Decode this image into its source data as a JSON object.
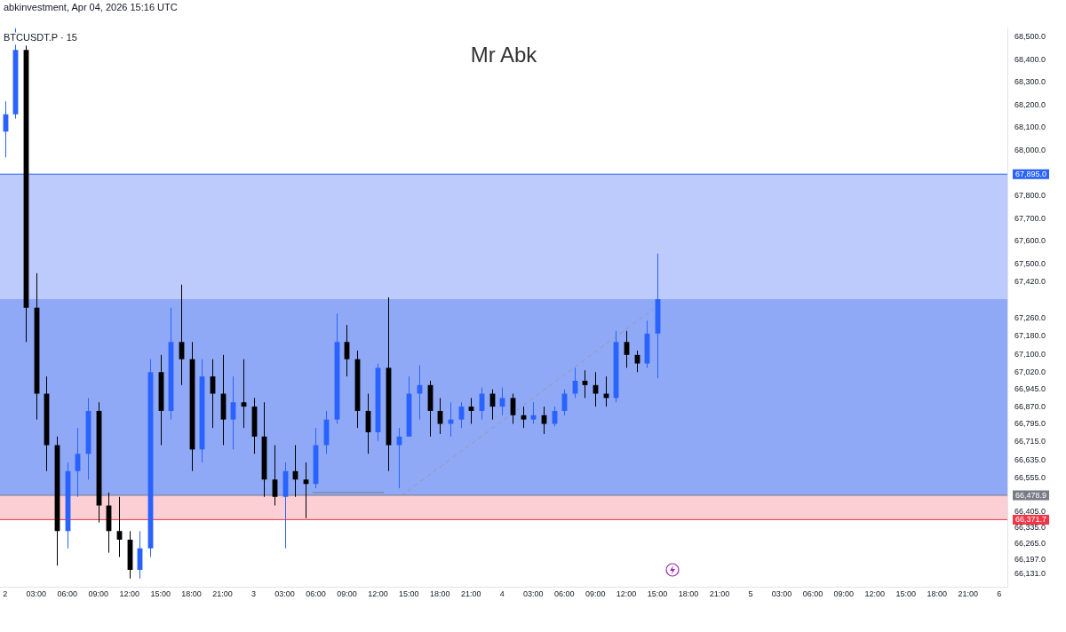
{
  "chart_data": {
    "type": "candlestick",
    "title": "Mr Abk",
    "subtitle": "BTCUSDT.P · 15",
    "annotations": [
      "abkinvestment, Apr 04, 2026 15:16 UTC"
    ],
    "x": [
      "2026-04-02T00:00",
      "2026-04-02T01:00",
      "2026-04-02T02:00",
      "2026-04-02T03:00",
      "2026-04-02T04:00",
      "2026-04-02T05:00",
      "2026-04-02T06:00",
      "2026-04-02T07:00",
      "2026-04-02T08:00",
      "2026-04-02T09:00",
      "2026-04-02T10:00",
      "2026-04-02T11:00",
      "2026-04-02T12:00",
      "2026-04-02T13:00",
      "2026-04-02T14:00",
      "2026-04-02T15:00",
      "2026-04-02T16:00",
      "2026-04-02T17:00",
      "2026-04-02T18:00",
      "2026-04-02T19:00",
      "2026-04-02T20:00",
      "2026-04-02T21:00",
      "2026-04-02T22:00",
      "2026-04-02T23:00",
      "2026-04-03T00:00",
      "2026-04-03T01:00",
      "2026-04-03T02:00",
      "2026-04-03T03:00",
      "2026-04-03T04:00",
      "2026-04-03T05:00",
      "2026-04-03T06:00",
      "2026-04-03T07:00",
      "2026-04-03T08:00",
      "2026-04-03T09:00",
      "2026-04-03T10:00",
      "2026-04-03T11:00",
      "2026-04-03T12:00",
      "2026-04-03T13:00",
      "2026-04-03T14:00",
      "2026-04-03T15:00",
      "2026-04-03T16:00",
      "2026-04-03T17:00",
      "2026-04-03T18:00",
      "2026-04-03T19:00",
      "2026-04-03T20:00",
      "2026-04-03T21:00",
      "2026-04-03T22:00",
      "2026-04-03T23:00",
      "2026-04-04T00:00",
      "2026-04-04T01:00",
      "2026-04-04T02:00",
      "2026-04-04T03:00",
      "2026-04-04T04:00",
      "2026-04-04T05:00",
      "2026-04-04T06:00",
      "2026-04-04T07:00",
      "2026-04-04T08:00",
      "2026-04-04T09:00",
      "2026-04-04T10:00",
      "2026-04-04T11:00",
      "2026-04-04T12:00",
      "2026-04-04T13:00",
      "2026-04-04T14:00",
      "2026-04-04T15:00"
    ],
    "ohlc": [
      [
        68083,
        68216,
        67969,
        68159
      ],
      [
        68159,
        68538,
        68140,
        68443
      ],
      [
        68443,
        68462,
        67155,
        67306
      ],
      [
        67306,
        67458,
        66813,
        66927
      ],
      [
        66927,
        67003,
        66586,
        66700
      ],
      [
        66700,
        66738,
        66169,
        66321
      ],
      [
        66321,
        66624,
        66245,
        66586
      ],
      [
        66586,
        66776,
        66472,
        66662
      ],
      [
        66662,
        66908,
        66548,
        66851
      ],
      [
        66851,
        66889,
        66359,
        66434
      ],
      [
        66434,
        66491,
        66226,
        66321
      ],
      [
        66321,
        66472,
        66207,
        66283
      ],
      [
        66283,
        66321,
        66112,
        66150
      ],
      [
        66150,
        66321,
        66112,
        66245
      ],
      [
        66245,
        67079,
        66207,
        67022
      ],
      [
        67022,
        67098,
        66700,
        66851
      ],
      [
        66851,
        67306,
        66813,
        67155
      ],
      [
        67155,
        67408,
        66965,
        67079
      ],
      [
        67079,
        67155,
        66586,
        66681
      ],
      [
        66681,
        67079,
        66624,
        67003
      ],
      [
        67003,
        67079,
        66776,
        66927
      ],
      [
        66927,
        67098,
        66700,
        66813
      ],
      [
        66813,
        67003,
        66681,
        66889
      ],
      [
        66889,
        67079,
        66776,
        66870
      ],
      [
        66870,
        66908,
        66662,
        66738
      ],
      [
        66738,
        66889,
        66472,
        66548
      ],
      [
        66548,
        66700,
        66434,
        66472
      ],
      [
        66472,
        66624,
        66245,
        66586
      ],
      [
        66586,
        66700,
        66472,
        66548
      ],
      [
        66548,
        66624,
        66378,
        66529
      ],
      [
        66529,
        66776,
        66510,
        66700
      ],
      [
        66700,
        66851,
        66662,
        66813
      ],
      [
        66813,
        67280,
        66794,
        67155
      ],
      [
        67155,
        67230,
        67003,
        67079
      ],
      [
        67079,
        67117,
        66776,
        66851
      ],
      [
        66851,
        66927,
        66662,
        66757
      ],
      [
        66757,
        67060,
        66719,
        67041
      ],
      [
        67041,
        67352,
        66586,
        66700
      ],
      [
        66700,
        66776,
        66510,
        66738
      ],
      [
        66738,
        67003,
        66738,
        66927
      ],
      [
        66927,
        67052,
        66813,
        66965
      ],
      [
        66965,
        66984,
        66738,
        66851
      ],
      [
        66851,
        66908,
        66749,
        66794
      ],
      [
        66794,
        66889,
        66738,
        66813
      ],
      [
        66813,
        66889,
        66776,
        66870
      ],
      [
        66870,
        66908,
        66794,
        66851
      ],
      [
        66851,
        66954,
        66813,
        66927
      ],
      [
        66927,
        66946,
        66813,
        66870
      ],
      [
        66870,
        66954,
        66832,
        66908
      ],
      [
        66908,
        66927,
        66794,
        66832
      ],
      [
        66832,
        66870,
        66776,
        66813
      ],
      [
        66813,
        66889,
        66794,
        66832
      ],
      [
        66832,
        66870,
        66749,
        66794
      ],
      [
        66794,
        66870,
        66783,
        66851
      ],
      [
        66851,
        66946,
        66832,
        66927
      ],
      [
        66927,
        67041,
        66908,
        66984
      ],
      [
        66984,
        67030,
        66908,
        66965
      ],
      [
        66965,
        67022,
        66870,
        66927
      ],
      [
        66927,
        67003,
        66870,
        66908
      ],
      [
        66908,
        67204,
        66889,
        67155
      ],
      [
        67155,
        67204,
        67041,
        67098
      ],
      [
        67098,
        67117,
        67022,
        67060
      ],
      [
        67060,
        67249,
        67041,
        67192
      ],
      [
        67192,
        67545,
        66995,
        67344
      ]
    ],
    "colors": [
      "#2962ff",
      "#2962ff",
      "#000000",
      "#000000",
      "#000000",
      "#000000",
      "#2962ff",
      "#2962ff",
      "#2962ff",
      "#000000",
      "#000000",
      "#000000",
      "#000000",
      "#2962ff",
      "#2962ff",
      "#000000",
      "#2962ff",
      "#000000",
      "#000000",
      "#2962ff",
      "#000000",
      "#000000",
      "#2962ff",
      "#000000",
      "#000000",
      "#000000",
      "#000000",
      "#2962ff",
      "#000000",
      "#000000",
      "#2962ff",
      "#2962ff",
      "#2962ff",
      "#000000",
      "#000000",
      "#000000",
      "#2962ff",
      "#000000",
      "#2962ff",
      "#2962ff",
      "#2962ff",
      "#000000",
      "#000000",
      "#2962ff",
      "#2962ff",
      "#000000",
      "#2962ff",
      "#000000",
      "#2962ff",
      "#000000",
      "#000000",
      "#2962ff",
      "#000000",
      "#2962ff",
      "#2962ff",
      "#2962ff",
      "#000000",
      "#000000",
      "#000000",
      "#2962ff",
      "#000000",
      "#000000",
      "#2962ff",
      "#2962ff"
    ],
    "series": [
      {
        "type": "line",
        "x": [
          "2026-04-03T14:18",
          "2026-04-04T14:36"
        ],
        "values": [
          66479,
          67300
        ],
        "color": "#9598a1",
        "line_style": "dashed"
      },
      {
        "type": "line",
        "x": [
          "2026-04-03T05:42",
          "2026-04-03T12:36"
        ],
        "values": [
          66491,
          66491
        ],
        "color": "#787b86",
        "line_style": "solid"
      }
    ],
    "bands": [
      {
        "axis": "y",
        "from": 67344,
        "to": 67895,
        "color": "#bccbfb"
      },
      {
        "axis": "y",
        "from": 66478.9,
        "to": 67344,
        "color": "#8fa9f7"
      },
      {
        "axis": "y",
        "from": 66371.7,
        "to": 66478.9,
        "color": "#fccfd4"
      }
    ],
    "ref_lines": [
      {
        "axis": "y",
        "value": 67895,
        "label": "67,895.0",
        "color": "#2962ff"
      },
      {
        "axis": "y",
        "value": 66478.9,
        "label": "66,478.9",
        "color": "#787b86"
      },
      {
        "axis": "y",
        "value": 66371.7,
        "label": "66,371.7",
        "color": "#f23645"
      }
    ],
    "xlim": [
      "2026-04-01T23:30",
      "2026-04-06T00:48"
    ],
    "xticks": [
      {
        "value": "2026-04-02T00:00",
        "label": "2"
      },
      {
        "value": "2026-04-02T03:00",
        "label": "03:00"
      },
      {
        "value": "2026-04-02T06:00",
        "label": "06:00"
      },
      {
        "value": "2026-04-02T09:00",
        "label": "09:00"
      },
      {
        "value": "2026-04-02T12:00",
        "label": "12:00"
      },
      {
        "value": "2026-04-02T15:00",
        "label": "15:00"
      },
      {
        "value": "2026-04-02T18:00",
        "label": "18:00"
      },
      {
        "value": "2026-04-02T21:00",
        "label": "21:00"
      },
      {
        "value": "2026-04-03T00:00",
        "label": "3"
      },
      {
        "value": "2026-04-03T03:00",
        "label": "03:00"
      },
      {
        "value": "2026-04-03T06:00",
        "label": "06:00"
      },
      {
        "value": "2026-04-03T09:00",
        "label": "09:00"
      },
      {
        "value": "2026-04-03T12:00",
        "label": "12:00"
      },
      {
        "value": "2026-04-03T15:00",
        "label": "15:00"
      },
      {
        "value": "2026-04-03T18:00",
        "label": "18:00"
      },
      {
        "value": "2026-04-03T21:00",
        "label": "21:00"
      },
      {
        "value": "2026-04-04T00:00",
        "label": "4"
      },
      {
        "value": "2026-04-04T03:00",
        "label": "03:00"
      },
      {
        "value": "2026-04-04T06:00",
        "label": "06:00"
      },
      {
        "value": "2026-04-04T09:00",
        "label": "09:00"
      },
      {
        "value": "2026-04-04T12:00",
        "label": "12:00"
      },
      {
        "value": "2026-04-04T15:00",
        "label": "15:00"
      },
      {
        "value": "2026-04-04T18:00",
        "label": "18:00"
      },
      {
        "value": "2026-04-04T21:00",
        "label": "21:00"
      },
      {
        "value": "2026-04-05T00:00",
        "label": "5"
      },
      {
        "value": "2026-04-05T03:00",
        "label": "03:00"
      },
      {
        "value": "2026-04-05T06:00",
        "label": "06:00"
      },
      {
        "value": "2026-04-05T09:00",
        "label": "09:00"
      },
      {
        "value": "2026-04-05T12:00",
        "label": "12:00"
      },
      {
        "value": "2026-04-05T15:00",
        "label": "15:00"
      },
      {
        "value": "2026-04-05T18:00",
        "label": "18:00"
      },
      {
        "value": "2026-04-05T21:00",
        "label": "21:00"
      },
      {
        "value": "2026-04-06T00:00",
        "label": "6"
      }
    ],
    "ylim": [
      66075,
      68540
    ],
    "yticks": [
      {
        "value": 66131,
        "label": "66,131.0"
      },
      {
        "value": 66197,
        "label": "66,197.0"
      },
      {
        "value": 66265,
        "label": "66,265.0"
      },
      {
        "value": 66335,
        "label": "66,335.0"
      },
      {
        "value": 66405,
        "label": "66,405.0"
      },
      {
        "value": 66555,
        "label": "66,555.0"
      },
      {
        "value": 66635,
        "label": "66,635.0"
      },
      {
        "value": 66715,
        "label": "66,715.0"
      },
      {
        "value": 66795,
        "label": "66,795.0"
      },
      {
        "value": 66870,
        "label": "66,870.0"
      },
      {
        "value": 66945,
        "label": "66,945.0"
      },
      {
        "value": 67020,
        "label": "67,020.0"
      },
      {
        "value": 67100,
        "label": "67,100.0"
      },
      {
        "value": 67180,
        "label": "67,180.0"
      },
      {
        "value": 67260,
        "label": "67,260.0"
      },
      {
        "value": 67420,
        "label": "67,420.0"
      },
      {
        "value": 67500,
        "label": "67,500.0"
      },
      {
        "value": 67600,
        "label": "67,600.0"
      },
      {
        "value": 67700,
        "label": "67,700.0"
      },
      {
        "value": 67800,
        "label": "67,800.0"
      },
      {
        "value": 68000,
        "label": "68,000.0"
      },
      {
        "value": 68100,
        "label": "68,100.0"
      },
      {
        "value": 68200,
        "label": "68,200.0"
      },
      {
        "value": 68300,
        "label": "68,300.0"
      },
      {
        "value": 68400,
        "label": "68,400.0"
      },
      {
        "value": 68500,
        "label": "68,500.0"
      }
    ],
    "legend": false
  }
}
